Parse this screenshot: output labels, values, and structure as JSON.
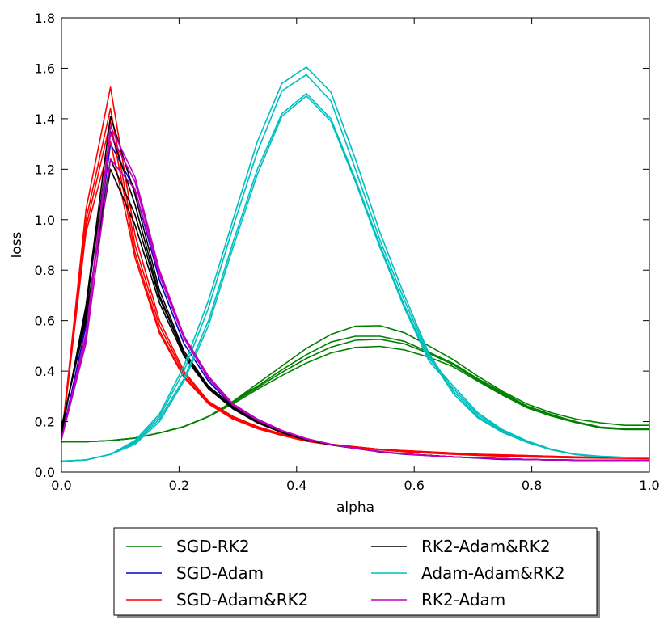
{
  "chart_data": {
    "type": "line",
    "title": "",
    "xlabel": "alpha",
    "ylabel": "loss",
    "xlim": [
      0.0,
      1.0
    ],
    "ylim": [
      0.0,
      1.8
    ],
    "grid": false,
    "legend_position": "below",
    "x_ticks": [
      "0.0",
      "0.2",
      "0.4",
      "0.6",
      "0.8",
      "1.0"
    ],
    "y_ticks": [
      "0.0",
      "0.2",
      "0.4",
      "0.6",
      "0.8",
      "1.0",
      "1.2",
      "1.4",
      "1.6",
      "1.8"
    ],
    "x_tick_values": [
      0.0,
      0.2,
      0.4,
      0.6,
      0.8,
      1.0
    ],
    "y_tick_values": [
      0.0,
      0.2,
      0.4,
      0.6,
      0.8,
      1.0,
      1.2,
      1.4,
      1.6,
      1.8
    ],
    "x": [
      0.0,
      0.0417,
      0.0833,
      0.125,
      0.1667,
      0.2083,
      0.25,
      0.2917,
      0.3333,
      0.375,
      0.4167,
      0.4583,
      0.5,
      0.5417,
      0.5833,
      0.625,
      0.6667,
      0.7083,
      0.75,
      0.7917,
      0.8333,
      0.875,
      0.9167,
      0.9583,
      1.0
    ],
    "series": [
      {
        "name": "SGD-RK2",
        "color": "#008000",
        "legend_index": 0,
        "curves": [
          [
            0.12,
            0.12,
            0.125,
            0.135,
            0.155,
            0.18,
            0.22,
            0.28,
            0.35,
            0.42,
            0.49,
            0.545,
            0.578,
            0.58,
            0.552,
            0.5,
            0.445,
            0.38,
            0.32,
            0.27,
            0.235,
            0.21,
            0.195,
            0.185,
            0.185
          ],
          [
            0.12,
            0.12,
            0.125,
            0.135,
            0.155,
            0.18,
            0.22,
            0.28,
            0.34,
            0.405,
            0.465,
            0.515,
            0.538,
            0.538,
            0.518,
            0.475,
            0.43,
            0.37,
            0.315,
            0.262,
            0.228,
            0.2,
            0.178,
            0.172,
            0.172
          ],
          [
            0.12,
            0.12,
            0.125,
            0.135,
            0.155,
            0.18,
            0.22,
            0.275,
            0.335,
            0.395,
            0.45,
            0.495,
            0.522,
            0.526,
            0.508,
            0.47,
            0.425,
            0.365,
            0.31,
            0.258,
            0.225,
            0.198,
            0.176,
            0.17,
            0.17
          ],
          [
            0.12,
            0.12,
            0.125,
            0.135,
            0.155,
            0.18,
            0.22,
            0.27,
            0.328,
            0.382,
            0.432,
            0.472,
            0.494,
            0.498,
            0.484,
            0.455,
            0.417,
            0.36,
            0.305,
            0.255,
            0.222,
            0.196,
            0.175,
            0.168,
            0.168
          ]
        ]
      },
      {
        "name": "SGD-Adam",
        "color": "#0000cc",
        "legend_index": 1,
        "curves": [
          [
            0.13,
            0.58,
            1.3,
            1.12,
            0.76,
            0.51,
            0.36,
            0.26,
            0.2,
            0.16,
            0.13,
            0.11,
            0.095,
            0.08,
            0.07,
            0.065,
            0.06,
            0.055,
            0.05,
            0.05,
            0.048,
            0.047,
            0.046,
            0.046,
            0.046
          ]
        ]
      },
      {
        "name": "SGD-Adam&RK2",
        "color": "#ff0000",
        "legend_index": 2,
        "curves": [
          [
            0.13,
            1.04,
            1.525,
            0.94,
            0.6,
            0.4,
            0.28,
            0.22,
            0.18,
            0.15,
            0.125,
            0.11,
            0.1,
            0.09,
            0.085,
            0.08,
            0.075,
            0.07,
            0.068,
            0.065,
            0.062,
            0.06,
            0.058,
            0.056,
            0.055
          ],
          [
            0.13,
            1.0,
            1.44,
            0.9,
            0.58,
            0.39,
            0.28,
            0.22,
            0.18,
            0.15,
            0.125,
            0.11,
            0.1,
            0.09,
            0.085,
            0.08,
            0.075,
            0.07,
            0.068,
            0.065,
            0.062,
            0.06,
            0.058,
            0.056,
            0.055
          ],
          [
            0.13,
            0.97,
            1.39,
            0.87,
            0.56,
            0.38,
            0.275,
            0.215,
            0.175,
            0.148,
            0.125,
            0.11,
            0.1,
            0.09,
            0.082,
            0.078,
            0.072,
            0.068,
            0.065,
            0.062,
            0.06,
            0.058,
            0.056,
            0.055,
            0.054
          ],
          [
            0.13,
            0.95,
            1.31,
            0.85,
            0.55,
            0.375,
            0.27,
            0.21,
            0.172,
            0.145,
            0.122,
            0.108,
            0.098,
            0.088,
            0.08,
            0.075,
            0.07,
            0.066,
            0.063,
            0.06,
            0.058,
            0.056,
            0.055,
            0.054,
            0.053
          ]
        ]
      },
      {
        "name": "RK2-Adam&RK2",
        "color": "#000000",
        "legend_index": 3,
        "curves": [
          [
            0.15,
            0.66,
            1.41,
            1.1,
            0.72,
            0.48,
            0.34,
            0.26,
            0.2,
            0.16,
            0.13,
            0.11,
            0.095,
            0.08,
            0.072,
            0.066,
            0.06,
            0.056,
            0.053,
            0.05,
            0.048,
            0.047,
            0.046,
            0.046,
            0.046
          ],
          [
            0.16,
            0.64,
            1.35,
            1.06,
            0.7,
            0.47,
            0.335,
            0.255,
            0.198,
            0.158,
            0.128,
            0.108,
            0.094,
            0.08,
            0.072,
            0.066,
            0.06,
            0.056,
            0.053,
            0.05,
            0.048,
            0.047,
            0.046,
            0.046,
            0.046
          ],
          [
            0.17,
            0.62,
            1.2,
            0.98,
            0.67,
            0.46,
            0.33,
            0.25,
            0.195,
            0.156,
            0.127,
            0.108,
            0.094,
            0.08,
            0.072,
            0.066,
            0.06,
            0.056,
            0.053,
            0.05,
            0.048,
            0.047,
            0.046,
            0.046,
            0.046
          ],
          [
            0.18,
            0.6,
            1.24,
            1.02,
            0.69,
            0.47,
            0.335,
            0.255,
            0.198,
            0.158,
            0.128,
            0.108,
            0.094,
            0.08,
            0.072,
            0.066,
            0.06,
            0.056,
            0.053,
            0.05,
            0.048,
            0.047,
            0.046,
            0.046,
            0.046
          ]
        ]
      },
      {
        "name": "Adam-Adam&RK2",
        "color": "#00bfbf",
        "legend_index": 4,
        "curves": [
          [
            0.043,
            0.048,
            0.07,
            0.125,
            0.23,
            0.42,
            0.68,
            1.0,
            1.31,
            1.54,
            1.605,
            1.505,
            1.24,
            0.95,
            0.7,
            0.47,
            0.32,
            0.22,
            0.16,
            0.12,
            0.09,
            0.07,
            0.062,
            0.058,
            0.058
          ],
          [
            0.043,
            0.048,
            0.07,
            0.12,
            0.22,
            0.4,
            0.65,
            0.97,
            1.27,
            1.51,
            1.575,
            1.47,
            1.2,
            0.92,
            0.68,
            0.46,
            0.31,
            0.215,
            0.157,
            0.118,
            0.088,
            0.069,
            0.061,
            0.057,
            0.057
          ],
          [
            0.043,
            0.048,
            0.07,
            0.115,
            0.21,
            0.37,
            0.6,
            0.91,
            1.2,
            1.42,
            1.5,
            1.4,
            1.16,
            0.9,
            0.66,
            0.45,
            0.34,
            0.235,
            0.168,
            0.124,
            0.09,
            0.07,
            0.062,
            0.058,
            0.058
          ],
          [
            0.043,
            0.048,
            0.07,
            0.11,
            0.2,
            0.36,
            0.58,
            0.89,
            1.18,
            1.41,
            1.49,
            1.39,
            1.15,
            0.89,
            0.65,
            0.44,
            0.33,
            0.228,
            0.164,
            0.121,
            0.089,
            0.069,
            0.061,
            0.057,
            0.057
          ]
        ]
      },
      {
        "name": "RK2-Adam",
        "color": "#bf00bf",
        "legend_index": 5,
        "curves": [
          [
            0.13,
            0.55,
            1.37,
            1.17,
            0.8,
            0.54,
            0.38,
            0.27,
            0.21,
            0.165,
            0.133,
            0.11,
            0.095,
            0.082,
            0.072,
            0.065,
            0.06,
            0.056,
            0.053,
            0.05,
            0.048,
            0.047,
            0.046,
            0.046,
            0.046
          ],
          [
            0.13,
            0.53,
            1.34,
            1.15,
            0.79,
            0.535,
            0.375,
            0.268,
            0.208,
            0.163,
            0.132,
            0.11,
            0.094,
            0.081,
            0.072,
            0.065,
            0.06,
            0.056,
            0.053,
            0.05,
            0.048,
            0.047,
            0.046,
            0.046,
            0.046
          ],
          [
            0.13,
            0.51,
            1.24,
            1.12,
            0.78,
            0.53,
            0.37,
            0.265,
            0.205,
            0.162,
            0.131,
            0.11,
            0.094,
            0.081,
            0.072,
            0.065,
            0.06,
            0.056,
            0.053,
            0.05,
            0.048,
            0.047,
            0.046,
            0.046,
            0.046
          ]
        ]
      }
    ]
  }
}
